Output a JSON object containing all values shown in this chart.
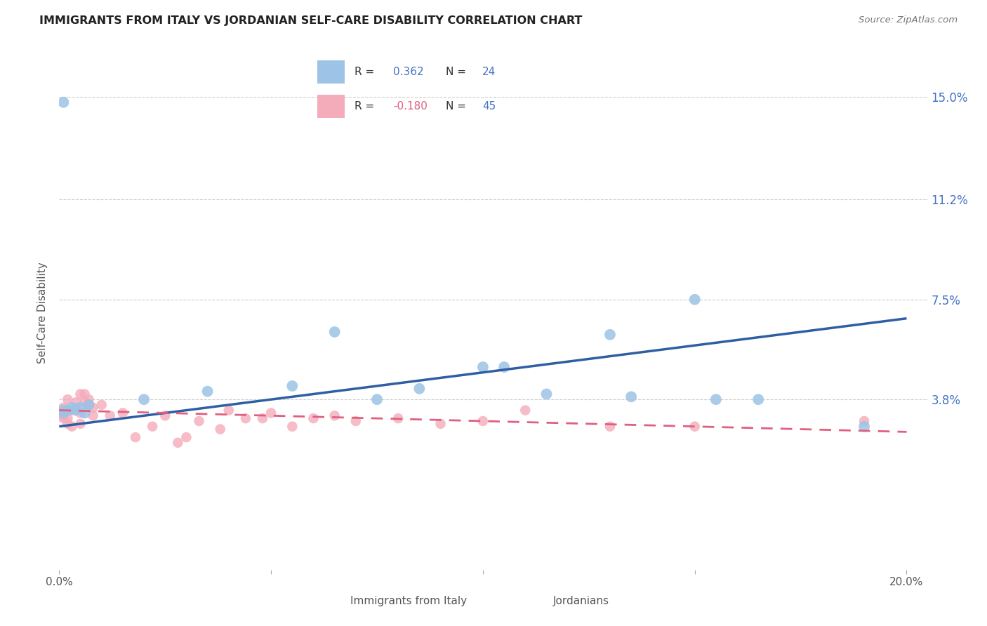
{
  "title": "IMMIGRANTS FROM ITALY VS JORDANIAN SELF-CARE DISABILITY CORRELATION CHART",
  "source": "Source: ZipAtlas.com",
  "ylabel": "Self-Care Disability",
  "blue_scatter_color": "#9DC3E6",
  "pink_scatter_color": "#F4ABBA",
  "blue_line_color": "#2E5FA3",
  "pink_line_color": "#E06080",
  "blue_label_color": "#4472C4",
  "background_color": "#FFFFFF",
  "grid_color": "#CCCCCC",
  "legend_italy_r": "0.362",
  "legend_italy_n": "24",
  "legend_jordan_r": "-0.180",
  "legend_jordan_n": "45",
  "y_ticks": [
    0.038,
    0.075,
    0.112,
    0.15
  ],
  "y_tick_labels": [
    "3.8%",
    "7.5%",
    "11.2%",
    "15.0%"
  ],
  "xlim": [
    0.0,
    0.205
  ],
  "ylim": [
    -0.025,
    0.165
  ],
  "italy_x": [
    0.001,
    0.001,
    0.002,
    0.003,
    0.004,
    0.005,
    0.006,
    0.007,
    0.02,
    0.035,
    0.055,
    0.065,
    0.075,
    0.085,
    0.1,
    0.115,
    0.135,
    0.155,
    0.001,
    0.15,
    0.165,
    0.19,
    0.105,
    0.13
  ],
  "italy_y": [
    0.034,
    0.033,
    0.034,
    0.035,
    0.034,
    0.035,
    0.033,
    0.036,
    0.038,
    0.041,
    0.043,
    0.063,
    0.038,
    0.042,
    0.05,
    0.04,
    0.039,
    0.038,
    0.148,
    0.075,
    0.038,
    0.028,
    0.05,
    0.062
  ],
  "jordan_x": [
    0.001,
    0.001,
    0.001,
    0.001,
    0.002,
    0.002,
    0.002,
    0.003,
    0.003,
    0.004,
    0.004,
    0.005,
    0.005,
    0.005,
    0.006,
    0.006,
    0.007,
    0.007,
    0.008,
    0.008,
    0.01,
    0.012,
    0.015,
    0.018,
    0.022,
    0.025,
    0.028,
    0.03,
    0.033,
    0.038,
    0.04,
    0.044,
    0.048,
    0.05,
    0.055,
    0.06,
    0.065,
    0.07,
    0.08,
    0.09,
    0.1,
    0.13,
    0.15,
    0.19,
    0.11
  ],
  "jordan_y": [
    0.033,
    0.031,
    0.032,
    0.035,
    0.038,
    0.031,
    0.029,
    0.034,
    0.028,
    0.035,
    0.037,
    0.033,
    0.04,
    0.029,
    0.04,
    0.037,
    0.038,
    0.036,
    0.035,
    0.032,
    0.036,
    0.032,
    0.033,
    0.024,
    0.028,
    0.032,
    0.022,
    0.024,
    0.03,
    0.027,
    0.034,
    0.031,
    0.031,
    0.033,
    0.028,
    0.031,
    0.032,
    0.03,
    0.031,
    0.029,
    0.03,
    0.028,
    0.028,
    0.03,
    0.034
  ],
  "italy_trend_x": [
    0.0,
    0.2
  ],
  "italy_trend_y": [
    0.028,
    0.068
  ],
  "jordan_trend_x": [
    0.0,
    0.2
  ],
  "jordan_trend_y": [
    0.034,
    0.026
  ]
}
